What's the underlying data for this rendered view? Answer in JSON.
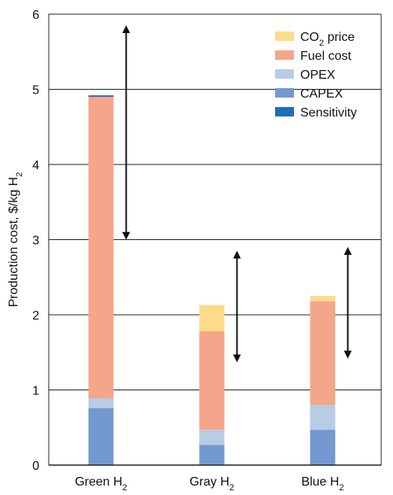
{
  "chart_data": {
    "type": "bar",
    "stacked": true,
    "title": "",
    "xlabel": "",
    "ylabel": {
      "main": "Production cost, $/kg H",
      "sub": "2"
    },
    "ylim": [
      0,
      6
    ],
    "yticks": [
      "0",
      "1",
      "2",
      "3",
      "4",
      "5",
      "6"
    ],
    "grid": "horizontal",
    "categories": [
      {
        "main": "Green H",
        "sub": "2"
      },
      {
        "main": "Gray H",
        "sub": "2"
      },
      {
        "main": "Blue H",
        "sub": "2"
      }
    ],
    "series": [
      {
        "key": "capex",
        "name": "CAPEX",
        "color": "#7499D1",
        "values": [
          0.76,
          0.27,
          0.47
        ]
      },
      {
        "key": "opex",
        "name": "OPEX",
        "color": "#B8CCE6",
        "values": [
          0.13,
          0.2,
          0.33
        ]
      },
      {
        "key": "fuel",
        "name": "Fuel cost",
        "color": "#F5A68A",
        "values": [
          4.01,
          1.31,
          1.38
        ]
      },
      {
        "key": "co2",
        "name": {
          "main": "CO",
          "sub": "2",
          "rest": " price"
        },
        "color": "#FCDB8A",
        "values": [
          0,
          0.35,
          0.07
        ]
      },
      {
        "key": "sens",
        "name": "Sensitivity",
        "color": "#1E6FB7",
        "values": [
          0.02,
          0,
          0
        ]
      }
    ],
    "legend_order": [
      "co2",
      "fuel",
      "opex",
      "capex",
      "sens"
    ],
    "legend_position": "top-right",
    "sensitivity_ranges": [
      {
        "category": "Green H2",
        "low": 3.05,
        "high": 5.8
      },
      {
        "category": "Gray H2",
        "low": 1.42,
        "high": 2.8
      },
      {
        "category": "Blue H2",
        "low": 1.47,
        "high": 2.85
      }
    ]
  }
}
